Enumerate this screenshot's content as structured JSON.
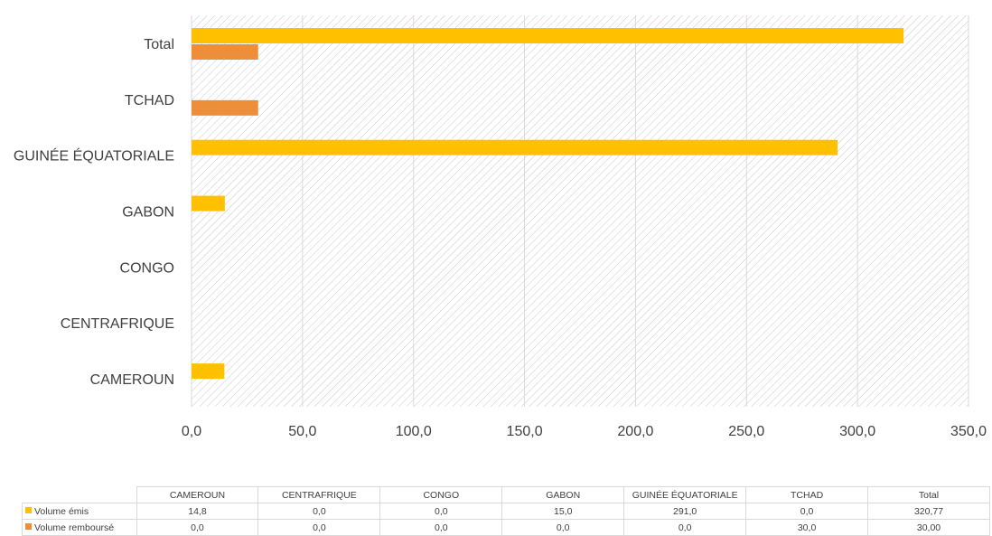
{
  "colors": {
    "volume_emis": "#ffc000",
    "volume_rembourse": "#ed8f3a",
    "gridline": "#d9d9d9",
    "hatch": "#c8c8c8"
  },
  "chart_data": {
    "type": "bar",
    "orientation": "horizontal",
    "categories": [
      "CAMEROUN",
      "CENTRAFRIQUE",
      "CONGO",
      "GABON",
      "GUINÉE ÉQUATORIALE",
      "TCHAD",
      "Total"
    ],
    "series": [
      {
        "name": "Volume émis",
        "values": [
          14.8,
          0.0,
          0.0,
          15.0,
          291.0,
          0.0,
          320.77
        ]
      },
      {
        "name": "Volume remboursé",
        "values": [
          0.0,
          0.0,
          0.0,
          0.0,
          0.0,
          30.0,
          30.0
        ]
      }
    ],
    "xlim": [
      0,
      350
    ],
    "x_ticks": [
      "0,0",
      "50,0",
      "100,0",
      "150,0",
      "200,0",
      "250,0",
      "300,0",
      "350,0"
    ],
    "grid": true,
    "legend": "data-table-below",
    "data_table": {
      "rows": [
        {
          "label": "Volume émis",
          "cells": [
            "14,8",
            "0,0",
            "0,0",
            "15,0",
            "291,0",
            "0,0",
            "320,77"
          ]
        },
        {
          "label": "Volume remboursé",
          "cells": [
            "0,0",
            "0,0",
            "0,0",
            "0,0",
            "0,0",
            "30,0",
            "30,00"
          ]
        }
      ]
    }
  }
}
